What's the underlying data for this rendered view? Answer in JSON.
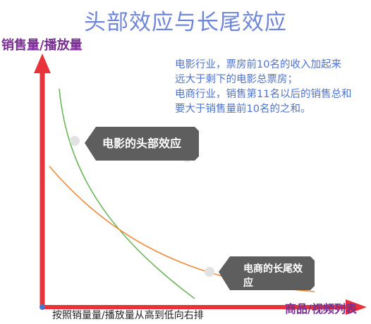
{
  "title": "头部效应与长尾效应",
  "y_axis_label": "销售量/播放量",
  "x_axis_label": "商品/视频列表",
  "x_axis_note": "按照销量量/播放量从高到低向右排",
  "note_lines": [
    "电影行业，票房前10名的收入加起来",
    "远大于剩下的电影总票房；",
    "电商行业，销售第11名以后的销售总和",
    "要大于销售量前10名的之和。"
  ],
  "callouts": {
    "head_effect": "电影的头部效应",
    "long_tail": "电商的长尾效应"
  },
  "colors": {
    "title": "#6f86d9",
    "axis": "#e8333a",
    "head_curve": "#6bb55a",
    "tail_curve": "#f08a3c",
    "callout_bg": "#5e5e5e"
  }
}
